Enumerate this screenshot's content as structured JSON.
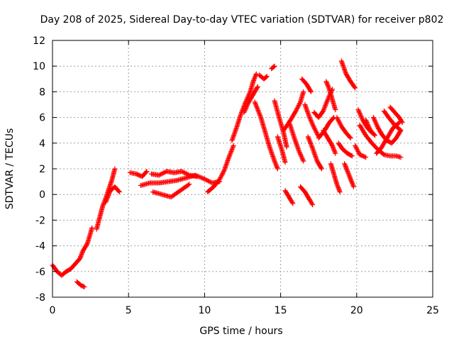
{
  "chart_data": {
    "type": "scatter",
    "title": "Day 208 of 2025, Sidereal Day-to-day VTEC variation (SDTVAR) for receiver p802",
    "xlabel": "GPS time / hours",
    "ylabel": "SDTVAR / TECUs",
    "xlim": [
      0,
      25
    ],
    "ylim": [
      -8,
      12
    ],
    "xticks": [
      0,
      5,
      10,
      15,
      20,
      25
    ],
    "yticks": [
      -8,
      -6,
      -4,
      -2,
      0,
      2,
      4,
      6,
      8,
      10,
      12
    ],
    "grid": true,
    "marker": "+",
    "color": "#ff0000",
    "series": [
      {
        "name": "SDTVAR",
        "tracks": [
          [
            [
              0.0,
              -5.5
            ],
            [
              0.3,
              -6.0
            ],
            [
              0.6,
              -6.3
            ],
            [
              0.9,
              -6.0
            ],
            [
              1.2,
              -5.8
            ],
            [
              1.5,
              -5.4
            ],
            [
              1.8,
              -5.0
            ],
            [
              2.0,
              -4.4
            ],
            [
              2.3,
              -3.8
            ],
            [
              2.6,
              -2.6
            ]
          ],
          [
            [
              1.6,
              -6.8
            ],
            [
              1.9,
              -7.1
            ],
            [
              2.1,
              -7.2
            ]
          ],
          [
            [
              2.9,
              -2.7
            ],
            [
              3.1,
              -1.8
            ],
            [
              3.3,
              -0.9
            ],
            [
              3.5,
              -0.3
            ],
            [
              3.7,
              0.4
            ],
            [
              3.9,
              1.1
            ],
            [
              4.1,
              2.0
            ]
          ],
          [
            [
              3.5,
              -0.6
            ],
            [
              3.8,
              0.3
            ],
            [
              4.1,
              0.6
            ],
            [
              4.4,
              0.2
            ]
          ],
          [
            [
              5.1,
              1.7
            ],
            [
              5.5,
              1.6
            ],
            [
              5.9,
              1.4
            ],
            [
              6.2,
              1.8
            ]
          ],
          [
            [
              5.8,
              0.7
            ],
            [
              6.4,
              0.9
            ],
            [
              7.0,
              0.9
            ],
            [
              7.6,
              1.0
            ],
            [
              8.2,
              1.1
            ],
            [
              8.8,
              1.3
            ],
            [
              9.4,
              1.5
            ],
            [
              10.0,
              1.2
            ],
            [
              10.5,
              0.9
            ],
            [
              11.0,
              1.0
            ]
          ],
          [
            [
              6.5,
              1.6
            ],
            [
              7.0,
              1.5
            ],
            [
              7.5,
              1.8
            ],
            [
              8.0,
              1.7
            ],
            [
              8.5,
              1.8
            ],
            [
              9.0,
              1.5
            ],
            [
              9.5,
              1.4
            ]
          ],
          [
            [
              6.6,
              0.2
            ],
            [
              7.2,
              0.0
            ],
            [
              7.8,
              -0.2
            ],
            [
              8.4,
              0.3
            ],
            [
              9.0,
              0.8
            ]
          ],
          [
            [
              10.2,
              0.2
            ],
            [
              10.6,
              0.6
            ],
            [
              11.0,
              1.2
            ],
            [
              11.3,
              1.9
            ],
            [
              11.6,
              2.9
            ],
            [
              11.9,
              3.8
            ]
          ],
          [
            [
              11.8,
              4.2
            ],
            [
              12.1,
              5.2
            ],
            [
              12.4,
              6.3
            ],
            [
              12.7,
              7.2
            ],
            [
              13.0,
              8.0
            ],
            [
              13.2,
              8.8
            ],
            [
              13.4,
              9.4
            ]
          ],
          [
            [
              12.6,
              6.4
            ],
            [
              12.9,
              7.2
            ],
            [
              13.2,
              7.8
            ],
            [
              13.5,
              8.4
            ]
          ],
          [
            [
              13.6,
              9.3
            ],
            [
              13.9,
              9.0
            ],
            [
              14.1,
              9.2
            ]
          ],
          [
            [
              13.3,
              7.2
            ],
            [
              13.7,
              6.0
            ],
            [
              14.0,
              4.8
            ],
            [
              14.3,
              3.6
            ],
            [
              14.6,
              2.6
            ],
            [
              14.8,
              2.0
            ]
          ],
          [
            [
              14.4,
              9.8
            ],
            [
              14.6,
              10.0
            ]
          ],
          [
            [
              14.6,
              7.3
            ],
            [
              14.9,
              6.0
            ],
            [
              15.2,
              4.8
            ],
            [
              15.4,
              3.7
            ]
          ],
          [
            [
              14.8,
              4.5
            ],
            [
              15.1,
              3.4
            ],
            [
              15.3,
              2.5
            ]
          ],
          [
            [
              15.6,
              5.5
            ],
            [
              15.9,
              4.4
            ],
            [
              16.2,
              3.4
            ],
            [
              16.5,
              2.6
            ]
          ],
          [
            [
              15.2,
              5.0
            ],
            [
              15.6,
              5.7
            ],
            [
              16.0,
              6.5
            ],
            [
              16.3,
              7.2
            ],
            [
              16.5,
              8.0
            ]
          ],
          [
            [
              15.3,
              0.3
            ],
            [
              15.6,
              -0.3
            ],
            [
              15.8,
              -0.7
            ]
          ],
          [
            [
              16.4,
              9.0
            ],
            [
              16.7,
              8.6
            ],
            [
              17.0,
              8.0
            ]
          ],
          [
            [
              16.6,
              7.0
            ],
            [
              16.9,
              6.0
            ],
            [
              17.2,
              5.2
            ],
            [
              17.5,
              4.5
            ]
          ],
          [
            [
              16.8,
              4.5
            ],
            [
              17.1,
              3.6
            ],
            [
              17.4,
              2.6
            ],
            [
              17.7,
              2.0
            ]
          ],
          [
            [
              16.3,
              0.6
            ],
            [
              16.6,
              0.2
            ],
            [
              16.9,
              -0.4
            ],
            [
              17.1,
              -0.8
            ]
          ],
          [
            [
              17.2,
              6.4
            ],
            [
              17.5,
              6.0
            ],
            [
              17.8,
              6.5
            ],
            [
              18.1,
              7.4
            ],
            [
              18.4,
              8.2
            ]
          ],
          [
            [
              17.8,
              5.0
            ],
            [
              18.1,
              4.4
            ],
            [
              18.4,
              3.8
            ],
            [
              18.6,
              3.2
            ]
          ],
          [
            [
              17.5,
              4.4
            ],
            [
              17.9,
              5.0
            ],
            [
              18.2,
              5.6
            ],
            [
              18.5,
              6.0
            ]
          ],
          [
            [
              18.3,
              2.4
            ],
            [
              18.5,
              1.6
            ],
            [
              18.7,
              0.8
            ],
            [
              18.9,
              0.2
            ]
          ],
          [
            [
              18.0,
              8.8
            ],
            [
              18.2,
              8.2
            ],
            [
              18.4,
              7.4
            ],
            [
              18.6,
              6.6
            ]
          ],
          [
            [
              18.7,
              6.0
            ],
            [
              19.0,
              5.3
            ],
            [
              19.3,
              4.8
            ],
            [
              19.6,
              4.4
            ]
          ],
          [
            [
              18.8,
              4.0
            ],
            [
              19.1,
              3.5
            ],
            [
              19.4,
              3.2
            ],
            [
              19.7,
              3.0
            ]
          ],
          [
            [
              19.2,
              2.4
            ],
            [
              19.4,
              1.8
            ],
            [
              19.6,
              1.2
            ],
            [
              19.8,
              0.6
            ]
          ],
          [
            [
              19.0,
              10.4
            ],
            [
              19.3,
              9.4
            ],
            [
              19.6,
              8.8
            ],
            [
              19.9,
              8.3
            ]
          ],
          [
            [
              19.9,
              3.8
            ],
            [
              20.2,
              3.1
            ],
            [
              20.6,
              2.9
            ]
          ],
          [
            [
              20.1,
              6.6
            ],
            [
              20.4,
              5.8
            ],
            [
              20.7,
              5.2
            ],
            [
              21.0,
              4.8
            ]
          ],
          [
            [
              20.6,
              5.8
            ],
            [
              20.9,
              5.0
            ],
            [
              21.2,
              4.6
            ]
          ],
          [
            [
              20.2,
              5.4
            ],
            [
              20.6,
              4.6
            ],
            [
              21.0,
              4.0
            ],
            [
              21.4,
              3.5
            ],
            [
              21.8,
              3.1
            ],
            [
              22.2,
              3.0
            ],
            [
              22.6,
              3.0
            ],
            [
              22.9,
              2.9
            ]
          ],
          [
            [
              21.1,
              6.0
            ],
            [
              21.4,
              5.2
            ],
            [
              21.7,
              4.6
            ],
            [
              22.0,
              4.2
            ],
            [
              22.3,
              4.0
            ],
            [
              22.6,
              4.4
            ],
            [
              22.9,
              5.0
            ]
          ],
          [
            [
              21.3,
              3.2
            ],
            [
              21.6,
              3.6
            ],
            [
              22.0,
              4.4
            ],
            [
              22.4,
              5.2
            ],
            [
              22.8,
              5.6
            ]
          ],
          [
            [
              21.8,
              6.5
            ],
            [
              22.1,
              6.0
            ],
            [
              22.5,
              5.4
            ],
            [
              22.9,
              5.0
            ]
          ],
          [
            [
              22.2,
              6.8
            ],
            [
              22.5,
              6.4
            ],
            [
              22.8,
              6.0
            ],
            [
              23.0,
              5.6
            ]
          ]
        ]
      }
    ]
  }
}
